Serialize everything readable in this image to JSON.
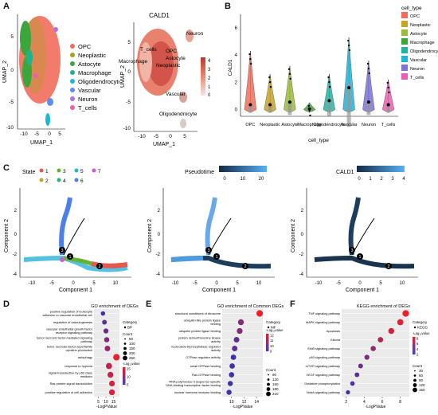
{
  "panel_labels": [
    "A",
    "B",
    "C",
    "D",
    "E",
    "F"
  ],
  "panelA": {
    "umap_celltype": {
      "xlabel": "UMAP_1",
      "ylabel": "UMAP_2",
      "xticks": [
        "-10",
        "-5",
        "0",
        "5"
      ],
      "yticks": [
        "5",
        "0",
        "-5",
        "-10"
      ],
      "legend": [
        {
          "name": "OPC",
          "color": "#f26d5b"
        },
        {
          "name": "Neoplastic",
          "color": "#a8a21f"
        },
        {
          "name": "Astocyte",
          "color": "#3aa63c"
        },
        {
          "name": "Macrophage",
          "color": "#1fb38a"
        },
        {
          "name": "Oligodendrocyte",
          "color": "#1fb5d6"
        },
        {
          "name": "Vascular",
          "color": "#5b8ef0"
        },
        {
          "name": "Neuron",
          "color": "#b46fe0"
        },
        {
          "name": "T_cells",
          "color": "#ea5fb1"
        }
      ]
    },
    "umap_cald1": {
      "title": "CALD1",
      "xlabel": "UMAP_1",
      "ylabel": "UMAP_2",
      "xticks": [
        "-10",
        "-5",
        "0",
        "5"
      ],
      "yticks": [
        "5",
        "0",
        "-5",
        "-10"
      ],
      "colorbar_ticks": [
        "4",
        "3",
        "2",
        "1",
        "0"
      ],
      "labels": [
        "Neuron",
        "T_cells",
        "OPC",
        "Astocyte",
        "Macrophage",
        "Neoplastic",
        "Vascular",
        "Oligodendrocyte"
      ]
    }
  },
  "panelB": {
    "ylabel": "CALD1",
    "xlabel": "cell_type",
    "yticks": [
      "0",
      "2",
      "4",
      "6"
    ],
    "legend_title": "cell_type"
  },
  "panelC": {
    "state_legend_title": "State",
    "states": [
      {
        "name": "1",
        "color": "#e8574a"
      },
      {
        "name": "2",
        "color": "#c9a227"
      },
      {
        "name": "3",
        "color": "#63b330"
      },
      {
        "name": "4",
        "color": "#26b27a"
      },
      {
        "name": "5",
        "color": "#29b2d8"
      },
      {
        "name": "6",
        "color": "#4c7fe8"
      },
      {
        "name": "7",
        "color": "#d05ad0"
      }
    ],
    "pseudotime": {
      "title": "Pseudotime",
      "ticks": [
        "0",
        "10",
        "20"
      ]
    },
    "cald1": {
      "title": "CALD1",
      "ticks": [
        "0",
        "1",
        "2",
        "3",
        "4"
      ]
    },
    "xlabel": "Component 1",
    "ylabel": "Component 2",
    "xticks": [
      "-10",
      "-5",
      "0",
      "5",
      "10"
    ],
    "yticks": [
      "2",
      "0",
      "-2",
      "-4"
    ],
    "branch_points": [
      "1",
      "2",
      "3"
    ]
  },
  "chart_data": [
    {
      "type": "violin",
      "title": "",
      "xlabel": "cell_type",
      "ylabel": "CALD1",
      "ylim": [
        -0.5,
        7
      ],
      "categories": [
        "OPC",
        "Neoplastic",
        "Astocyte",
        "Macrophage",
        "Oligodendrocyte",
        "Vascular",
        "Neuron",
        "T_cells"
      ],
      "medians": [
        0.3,
        0.3,
        0.5,
        0.0,
        0.6,
        1.6,
        0.5,
        0.3
      ],
      "means": [
        0.35,
        0.35,
        0.55,
        0.05,
        0.65,
        1.6,
        0.55,
        0.35
      ],
      "max": [
        4.3,
        2.6,
        3.2,
        0.5,
        2.6,
        5.3,
        3.6,
        2.2
      ],
      "colors": [
        "#f26d5b",
        "#c9a227",
        "#9bbb3a",
        "#3aa63c",
        "#1fb5a0",
        "#1fb5d6",
        "#7a74d9",
        "#ea5fb1"
      ]
    },
    {
      "type": "scatter",
      "title": "GO enrichment of DEGs",
      "xlabel": "-LogPValue",
      "ylabel": "",
      "xticks": [
        "5",
        "10",
        "15"
      ],
      "xlim": [
        2,
        19
      ],
      "categories": [
        "positive regulation of leukocyte adhesion to vascular endothelial cell",
        "regulation of vasculogenesis",
        "vascular endothelial growth factor receptor signaling pathway",
        "tumor necrosis factor-mediated signaling pathway",
        "tumor necrosis factor superfamily cytokine production",
        "autophagy",
        "response to hypoxia",
        "signal transduction by p53 class mediator",
        "Ras protein signal transduction",
        "positive regulation of cell adhesion"
      ],
      "x": [
        8,
        9,
        10,
        10.5,
        11,
        17,
        12,
        13,
        14,
        14
      ],
      "size": [
        60,
        80,
        100,
        120,
        150,
        250,
        200,
        180,
        160,
        170
      ],
      "color_value": [
        6,
        7,
        8,
        9,
        10,
        14,
        12,
        12,
        13,
        13
      ],
      "category_label": "Category",
      "category_value": "BP",
      "count_label": "Count",
      "count_legend": [
        "50",
        "100",
        "150",
        "200",
        "250"
      ],
      "color_label": "-Log₁₀value",
      "color_ticks": [
        "15",
        "10",
        "5"
      ]
    },
    {
      "type": "scatter",
      "title": "GO enrichment of Common DEGs",
      "xlabel": "-LogPValue",
      "ylabel": "",
      "xticks": [
        "10",
        "12",
        "14"
      ],
      "xlim": [
        8.5,
        15
      ],
      "categories": [
        "structural constituent of ribosome",
        "ubiquitin-like protein ligase binding",
        "ubiquitin protein ligase binding",
        "protein serine/threonine kinase activity",
        "nucleoside-triphosphatase regulator activity",
        "GTPase regulator activity",
        "small GTPase binding",
        "Ras GTPase binding",
        "RNA polymerase II sequence-specific DNA-binding transcription factor binding",
        "nuclear hormone receptor binding"
      ],
      "x": [
        14.5,
        11.5,
        11.3,
        10.8,
        10.5,
        10.3,
        10.1,
        10,
        9.8,
        9.6
      ],
      "size": [
        210,
        150,
        145,
        130,
        120,
        115,
        110,
        105,
        95,
        90
      ],
      "color_value": [
        14,
        11,
        11,
        10,
        10,
        9,
        9,
        9,
        9,
        9
      ],
      "category_label": "Category",
      "category_value": "MF",
      "count_label": "Count",
      "count_legend": [
        "90",
        "120",
        "150",
        "180",
        "210"
      ],
      "color_label": "-Log₁₀value",
      "color_ticks": [
        "12",
        "11",
        "10",
        "9"
      ]
    },
    {
      "type": "scatter",
      "title": "KEGG enrichment of DEGs",
      "xlabel": "-LogPValue",
      "ylabel": "",
      "xticks": [
        "2",
        "4",
        "6",
        "8"
      ],
      "xlim": [
        1.5,
        9
      ],
      "categories": [
        "TNF signaling pathway",
        "MAPK signaling pathway",
        "Apoptosis",
        "Glioma",
        "ErbB signaling pathway",
        "p53 signaling pathway",
        "mTOR signaling pathway",
        "VEGF signaling pathway",
        "Oxidative phosphorylation",
        "Notch signaling pathway"
      ],
      "x": [
        8.6,
        8.0,
        7.0,
        5.8,
        5.0,
        4.3,
        3.6,
        3.2,
        2.7,
        2.2
      ],
      "size": [
        150,
        130,
        110,
        80,
        70,
        60,
        50,
        45,
        40,
        30
      ],
      "color_value": [
        8,
        7.5,
        7,
        6,
        5,
        4.5,
        4,
        3.5,
        3,
        2.5
      ],
      "category_label": "Category",
      "category_value": "KEGG",
      "count_label": "Count",
      "count_legend": [
        "30",
        "60",
        "90",
        "120",
        "150"
      ],
      "color_label": "-Log₁₀value",
      "color_ticks": [
        "8",
        "6",
        "4",
        "2"
      ]
    }
  ]
}
